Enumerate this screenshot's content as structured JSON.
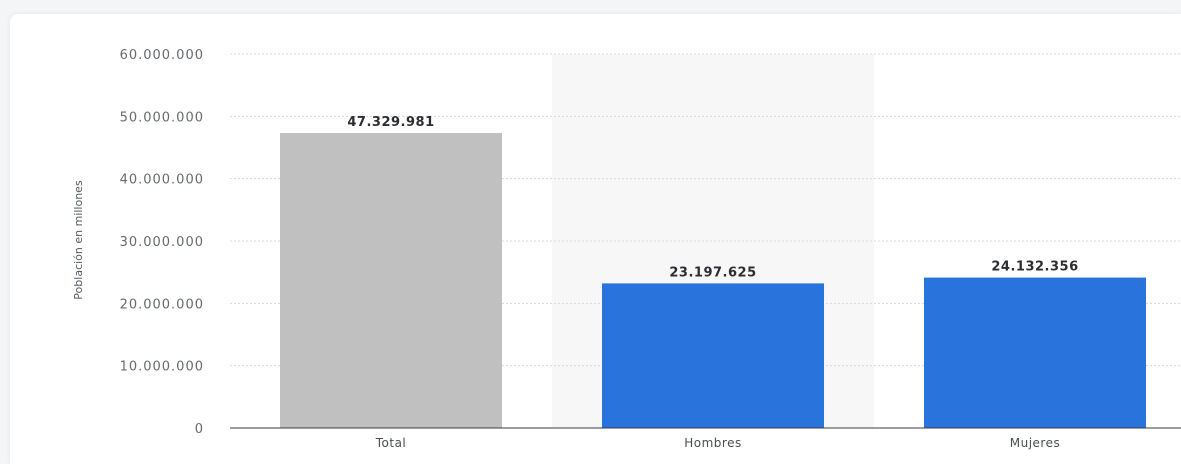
{
  "chart_data": {
    "type": "bar",
    "title": "",
    "xlabel": "",
    "ylabel": "Población en millones",
    "categories": [
      "Total",
      "Hombres",
      "Mujeres"
    ],
    "values": [
      47329981,
      23197625,
      24132356
    ],
    "value_labels": [
      "47.329.981",
      "23.197.625",
      "24.132.356"
    ],
    "bar_colors": [
      "#c0c0c0",
      "#2874dc",
      "#2874dc"
    ],
    "highlight_category": "Hombres",
    "ylim": [
      0,
      60000000
    ],
    "yticks": [
      0,
      10000000,
      20000000,
      30000000,
      40000000,
      50000000,
      60000000
    ],
    "ytick_labels": [
      "0",
      "10.000.000",
      "20.000.000",
      "30.000.000",
      "40.000.000",
      "50.000.000",
      "60.000.000"
    ],
    "grid": true,
    "legend": "none"
  }
}
